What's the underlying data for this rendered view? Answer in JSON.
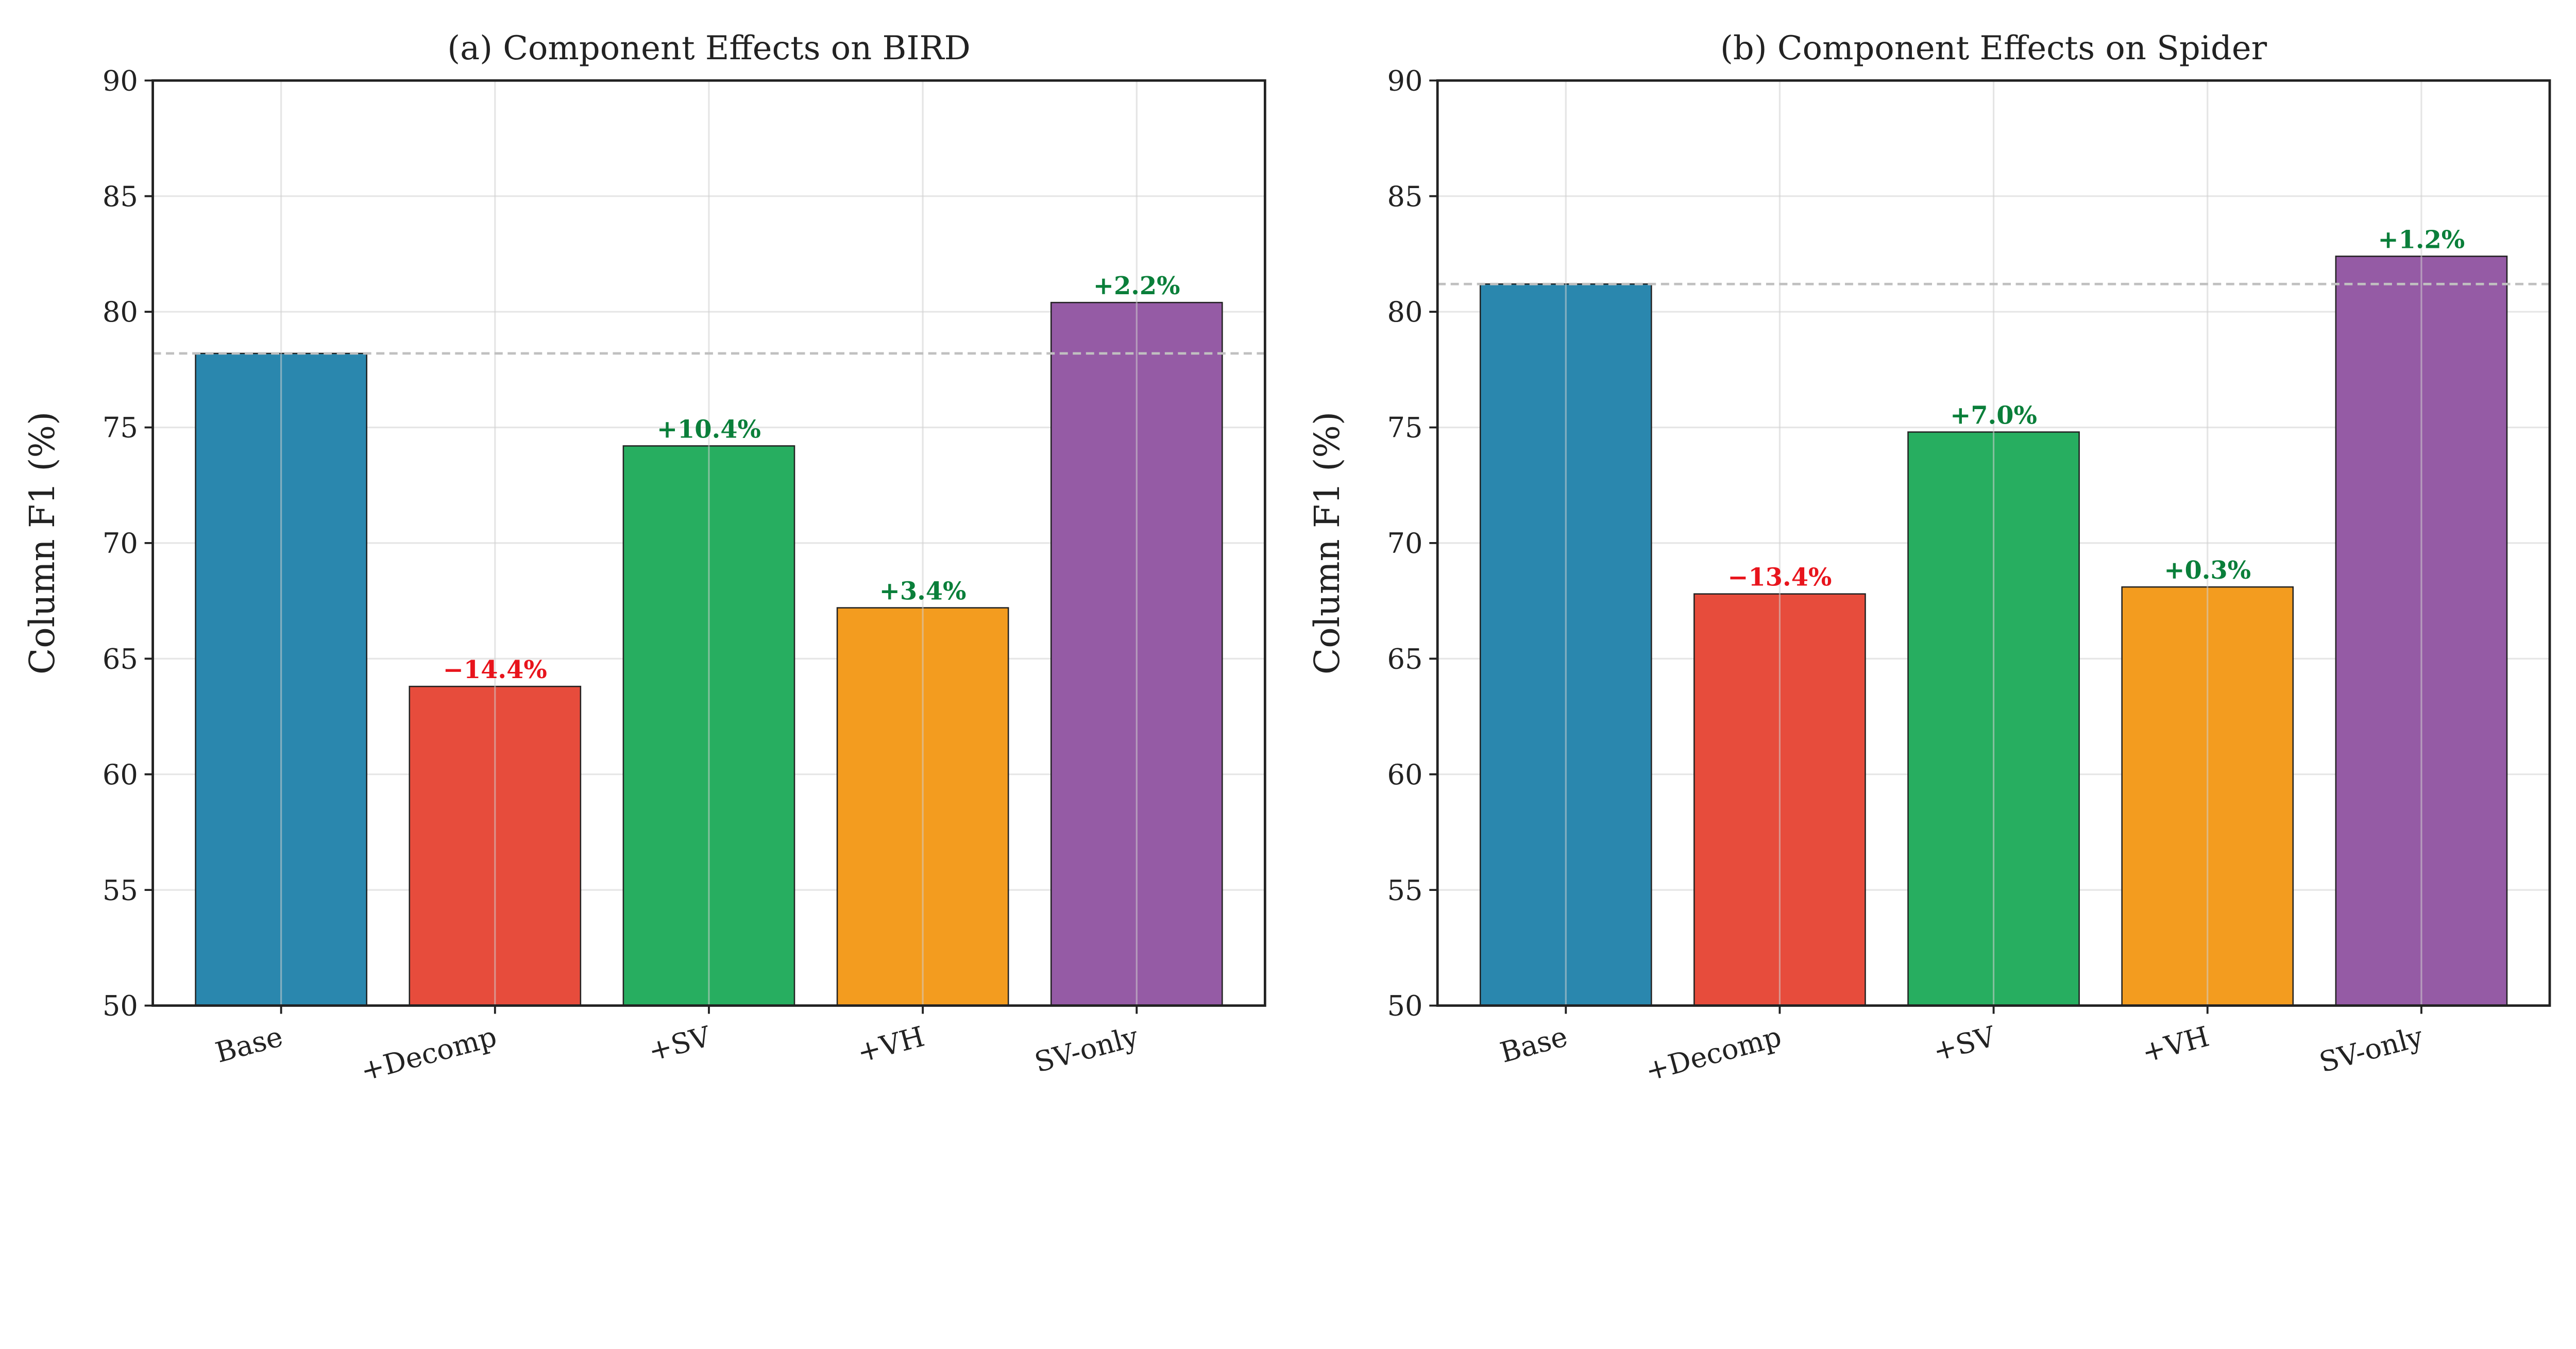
{
  "chart_data": [
    {
      "type": "bar",
      "title": "(a) Component Effects on BIRD",
      "xlabel": "",
      "ylabel": "Column F1 (%)",
      "ylim": [
        50,
        90
      ],
      "yticks": [
        "50",
        "55",
        "60",
        "65",
        "70",
        "75",
        "80",
        "85",
        "90"
      ],
      "categories": [
        "Base",
        "+Decomp",
        "+SV",
        "+VH",
        "SV-only"
      ],
      "values": [
        78.2,
        63.8,
        74.2,
        67.2,
        80.4
      ],
      "annotations": [
        "",
        "−14.4%",
        "+10.4%",
        "+3.4%",
        "+2.2%"
      ],
      "baseline": 78.2,
      "grid": true
    },
    {
      "type": "bar",
      "title": "(b) Component Effects on Spider",
      "xlabel": "",
      "ylabel": "Column F1 (%)",
      "ylim": [
        50,
        90
      ],
      "yticks": [
        "50",
        "55",
        "60",
        "65",
        "70",
        "75",
        "80",
        "85",
        "90"
      ],
      "categories": [
        "Base",
        "+Decomp",
        "+SV",
        "+VH",
        "SV-only"
      ],
      "values": [
        81.2,
        67.8,
        74.8,
        68.1,
        82.4
      ],
      "annotations": [
        "",
        "−13.4%",
        "+7.0%",
        "+0.3%",
        "+1.2%"
      ],
      "baseline": 81.2,
      "grid": true
    }
  ],
  "colors": {
    "bars": [
      "#2a87ae",
      "#e74c3c",
      "#27ae60",
      "#f39c1f",
      "#955ba5"
    ],
    "positive": "#0a7f3a",
    "negative": "#e8141c",
    "baseline": "#c0c0c0",
    "grid": "#e6e6e6"
  }
}
